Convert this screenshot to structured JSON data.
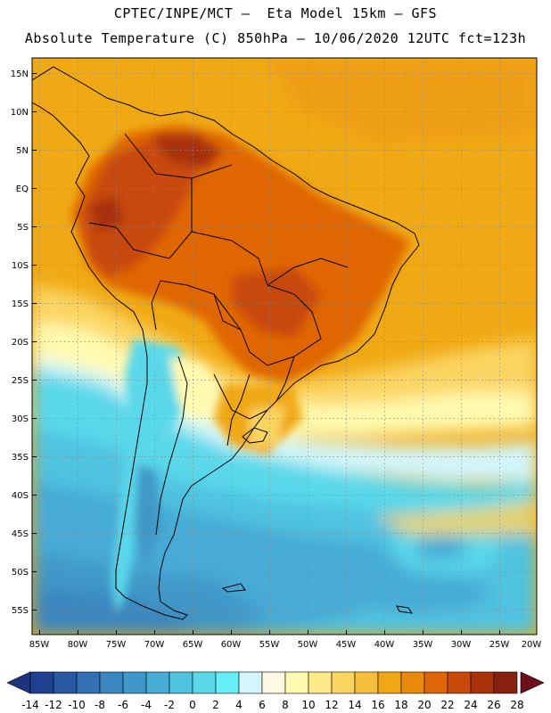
{
  "header": {
    "line1": "CPTEC/INPE/MCT —  Eta Model 15km — GFS",
    "line2": "Absolute Temperature (C) 850hPa — 10/06/2020 12UTC fct=123h"
  },
  "map": {
    "lat_labels": [
      "15N",
      "10N",
      "5N",
      "EQ",
      "5S",
      "10S",
      "15S",
      "20S",
      "25S",
      "30S",
      "35S",
      "40S",
      "45S",
      "50S",
      "55S"
    ],
    "lon_labels": [
      "85W",
      "80W",
      "75W",
      "70W",
      "65W",
      "60W",
      "55W",
      "50W",
      "45W",
      "40W",
      "35W",
      "30W",
      "25W",
      "20W"
    ],
    "lat_range": [
      17.5,
      -58.5
    ],
    "lon_range": [
      -86,
      -20
    ]
  },
  "colorbar": {
    "labels": [
      "-14",
      "-12",
      "-10",
      "-8",
      "-6",
      "-4",
      "-2",
      "0",
      "2",
      "4",
      "6",
      "8",
      "10",
      "12",
      "14",
      "16",
      "18",
      "20",
      "22",
      "24",
      "26",
      "28"
    ],
    "colors": [
      "#1f3f8f",
      "#2a59a3",
      "#3270b2",
      "#3b86bf",
      "#3f98c8",
      "#47abd6",
      "#50c3e0",
      "#5ad8ea",
      "#66eef7",
      "#d2f6fb",
      "#fff9e4",
      "#fffab0",
      "#fde88a",
      "#fbd562",
      "#f5be3c",
      "#efa716",
      "#ea8a0c",
      "#df6606",
      "#c84a08",
      "#a83108",
      "#862110"
    ],
    "below_color": "#1b347c",
    "above_color": "#6e0f1c"
  }
}
